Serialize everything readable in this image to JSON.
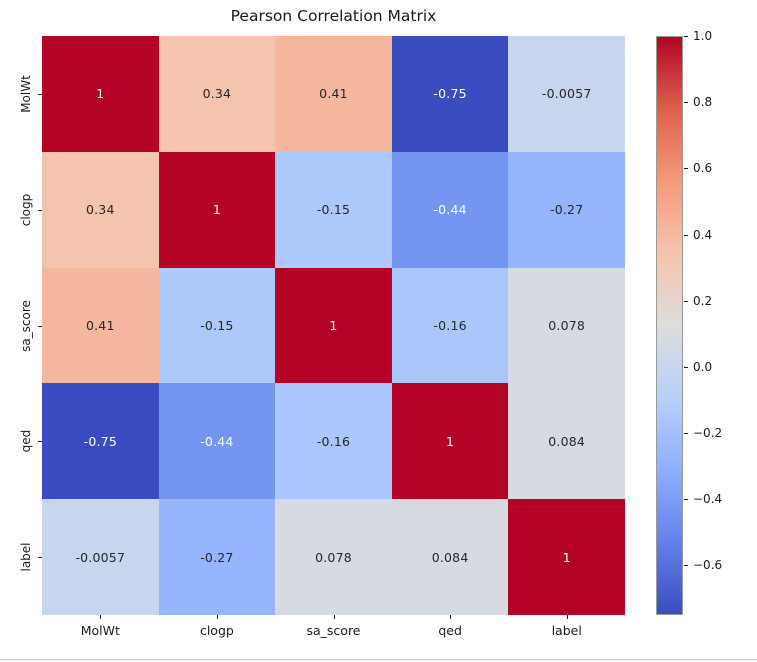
{
  "title": "Pearson Correlation Matrix",
  "chart_data": {
    "type": "heatmap",
    "title": "Pearson Correlation Matrix",
    "categories": [
      "MolWt",
      "clogp",
      "sa_score",
      "qed",
      "label"
    ],
    "matrix": [
      [
        1,
        0.34,
        0.41,
        -0.75,
        -0.0057
      ],
      [
        0.34,
        1,
        -0.15,
        -0.44,
        -0.27
      ],
      [
        0.41,
        -0.15,
        1,
        -0.16,
        0.078
      ],
      [
        -0.75,
        -0.44,
        -0.16,
        1,
        0.084
      ],
      [
        -0.0057,
        -0.27,
        0.078,
        0.084,
        1
      ]
    ],
    "cell_labels": [
      [
        "1",
        "0.34",
        "0.41",
        "-0.75",
        "-0.0057"
      ],
      [
        "0.34",
        "1",
        "-0.15",
        "-0.44",
        "-0.27"
      ],
      [
        "0.41",
        "-0.15",
        "1",
        "-0.16",
        "0.078"
      ],
      [
        "-0.75",
        "-0.44",
        "-0.16",
        "1",
        "0.084"
      ],
      [
        "-0.0057",
        "-0.27",
        "0.078",
        "0.084",
        "1"
      ]
    ],
    "vmin": -0.75,
    "vmax": 1.0,
    "colormap": "coolwarm",
    "grid": false,
    "colorbar_position": "right",
    "colorbar_ticks": [
      {
        "value": 1.0,
        "label": "1.0"
      },
      {
        "value": 0.8,
        "label": "0.8"
      },
      {
        "value": 0.6,
        "label": "0.6"
      },
      {
        "value": 0.4,
        "label": "0.4"
      },
      {
        "value": 0.2,
        "label": "0.2"
      },
      {
        "value": 0.0,
        "label": "0.0"
      },
      {
        "value": -0.2,
        "label": "−0.2"
      },
      {
        "value": -0.4,
        "label": "−0.4"
      },
      {
        "value": -0.6,
        "label": "−0.6"
      }
    ],
    "cmap_anchors": [
      {
        "t": 0.0,
        "hex": "#3b4cc0"
      },
      {
        "t": 0.125,
        "hex": "#6282ea"
      },
      {
        "t": 0.25,
        "hex": "#8db0fe"
      },
      {
        "t": 0.375,
        "hex": "#b8d0f9"
      },
      {
        "t": 0.5,
        "hex": "#dddddd"
      },
      {
        "t": 0.625,
        "hex": "#f5c4ad"
      },
      {
        "t": 0.75,
        "hex": "#f49a7b"
      },
      {
        "t": 0.875,
        "hex": "#de604d"
      },
      {
        "t": 1.0,
        "hex": "#b40426"
      }
    ]
  },
  "colors": {
    "background": "#ffffff",
    "text": "#1a1a1a",
    "annot_dark": "#262626",
    "annot_light": "#ffffff"
  }
}
